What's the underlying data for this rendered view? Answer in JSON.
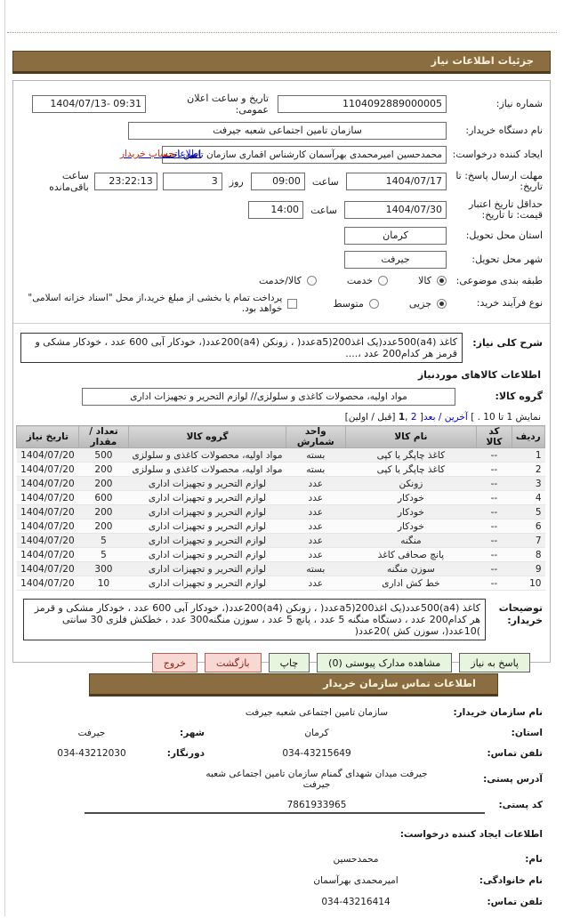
{
  "header": {
    "title": "جزئیات اطلاعات نیاز"
  },
  "form": {
    "need_number": {
      "label": "شماره نیاز:",
      "value": "1104092889000005"
    },
    "announce": {
      "label": "تاریخ و ساعت اعلان عمومی:",
      "value": "1404/07/13- 09:31"
    },
    "buyer_org": {
      "label": "نام دستگاه خریدار:",
      "value": "سازمان تامین اجتماعی شعبه جیرفت"
    },
    "creator": {
      "label": "ایجاد کننده درخواست:",
      "value": "محمدحسین امیرمحمدی بهرآسمان کارشناس اقماری سازمان تامین اجتماعی",
      "link_part1": "اطلاعات",
      "link_part2": "حساب خریدار"
    },
    "deadline": {
      "label": "مهلت ارسال پاسخ: تا تاریخ:",
      "date": "1404/07/17",
      "hour_label": "ساعت",
      "hour": "09:00",
      "day_label": "روز",
      "days": "3",
      "remaining": "23:22:13",
      "remaining_label": "ساعت باقی‌مانده"
    },
    "price_validity": {
      "label": "حداقل تاریخ اعتبار قیمت: تا تاریخ:",
      "date": "1404/07/30",
      "hour_label": "ساعت",
      "hour": "14:00"
    },
    "province": {
      "label": "استان محل تحویل:",
      "value": "کرمان"
    },
    "city": {
      "label": "شهر محل تحویل:",
      "value": "جیرفت"
    },
    "category": {
      "label": "طبقه بندی موضوعی:",
      "options": [
        {
          "label": "کالا",
          "selected": true
        },
        {
          "label": "خدمت",
          "selected": false
        },
        {
          "label": "کالا/خدمت",
          "selected": false
        }
      ]
    },
    "process_type": {
      "label": "نوع فرآیند خرید:",
      "options": [
        {
          "label": "جزیی",
          "selected": true
        },
        {
          "label": "متوسط",
          "selected": false
        }
      ],
      "checkbox_label": "پرداخت تمام یا بخشی از مبلغ خرید،از محل \"اسناد خزانه اسلامی\" خواهد بود.",
      "checkbox_checked": false
    }
  },
  "need_desc": {
    "label": "شرح کلی نیاز:",
    "value": "کاغذ (a4)500عدد(یک اغذ200(a5عدد( ، زونکن (a4)200عدد(، خودکار آبی 600 عدد ، خودکار مشکی و قرمز هر کدام200 عدد ،...."
  },
  "goods_info": {
    "title": "اطلاعات کالاهای موردنیاز",
    "group": {
      "label": "گروه کالا:",
      "value": "مواد اولیه، محصولات کاغذی و سلولزی// لوازم التحریر و تجهیزات اداری"
    },
    "pagination": {
      "prefix": "نمایش 1 تا 10 . ]",
      "links": "آخرین / بعد",
      "open_bracket": "[",
      "page2": "2",
      "comma": " ,",
      "page1": "1",
      "suffix": "[قبل / اولین]"
    }
  },
  "table": {
    "columns": [
      "ردیف",
      "کد کالا",
      "نام کالا",
      "واحد شمارش",
      "گروه کالا",
      "تعداد / مقدار",
      "تاریخ نیاز"
    ],
    "col_keys": [
      "row-index",
      "item-code",
      "item-name",
      "unit",
      "item-group",
      "quantity",
      "need-date"
    ],
    "rows": [
      [
        "1",
        "--",
        "کاغذ چاپگر یا کپی",
        "بسته",
        "مواد اولیه، محصولات کاغذی و سلولزی",
        "500",
        "1404/07/20"
      ],
      [
        "2",
        "--",
        "کاغذ چاپگر یا کپی",
        "بسته",
        "مواد اولیه، محصولات کاغذی و سلولزی",
        "200",
        "1404/07/20"
      ],
      [
        "3",
        "--",
        "زونکن",
        "عدد",
        "لوازم التحریر و تجهیزات اداری",
        "200",
        "1404/07/20"
      ],
      [
        "4",
        "--",
        "خودکار",
        "عدد",
        "لوازم التحریر و تجهیزات اداری",
        "600",
        "1404/07/20"
      ],
      [
        "5",
        "--",
        "خودکار",
        "عدد",
        "لوازم التحریر و تجهیزات اداری",
        "200",
        "1404/07/20"
      ],
      [
        "6",
        "--",
        "خودکار",
        "عدد",
        "لوازم التحریر و تجهیزات اداری",
        "200",
        "1404/07/20"
      ],
      [
        "7",
        "--",
        "منگنه",
        "عدد",
        "لوازم التحریر و تجهیزات اداری",
        "5",
        "1404/07/20"
      ],
      [
        "8",
        "--",
        "پانچ صحافی کاغذ",
        "عدد",
        "لوازم التحریر و تجهیزات اداری",
        "5",
        "1404/07/20"
      ],
      [
        "9",
        "--",
        "سوزن منگنه",
        "بسته",
        "لوازم التحریر و تجهیزات اداری",
        "300",
        "1404/07/20"
      ],
      [
        "10",
        "--",
        "خط کش اداری",
        "عدد",
        "لوازم التحریر و تجهیزات اداری",
        "10",
        "1404/07/20"
      ]
    ]
  },
  "buyer_notes": {
    "label_line1": "توضیحات",
    "label_line2": "خریدار:",
    "value": "کاغذ (a4)500عدد(یک اغذ200(a5عدد( ، زونکن (a4)200عدد(، خودکار آبی 600 عدد ، خودکار مشکی و قرمز هر کدام200 عدد ، دستگاه منگنه 5 عدد ، پانچ 5 عدد ، سوزن منگنه300 عدد ، خطکش فلزی 30 سانتی )10عدد(، سوزن کش )20عدد("
  },
  "buttons": [
    {
      "label": "پاسخ به نیاز",
      "style": "green"
    },
    {
      "label": "مشاهده مدارک پیوستی (0)",
      "style": "green"
    },
    {
      "label": "چاپ",
      "style": "green"
    },
    {
      "label": "بازگشت",
      "style": "red"
    },
    {
      "label": "خروج",
      "style": "red"
    }
  ],
  "contact": {
    "title": "اطلاعات تماس سازمان خریدار",
    "org": {
      "label": "نام سازمان خریدار:",
      "value": "سازمان تامین اجتماعی شعبه جیرفت"
    },
    "province": {
      "label": "استان:",
      "value": "کرمان"
    },
    "city": {
      "label": "شهر:",
      "value": "جیرفت"
    },
    "phone": {
      "label": "تلفن تماس:",
      "value": "034-43215649"
    },
    "fax": {
      "label": "دورنگار:",
      "value": "034-43212030"
    },
    "address": {
      "label": "آدرس پستی:",
      "value": "جیرفت میدان شهدای گمنام سازمان تامین اجتماعی شعبه جیرفت"
    },
    "postal_code": {
      "label": "کد پستی:",
      "value": "7861933965"
    }
  },
  "creator_info": {
    "title": "اطلاعات ایجاد کننده درخواست:",
    "first_name": {
      "label": "نام:",
      "value": "محمدحسین"
    },
    "last_name": {
      "label": "نام خانوادگی:",
      "value": "امیرمحمدی بهرآسمان"
    },
    "phone": {
      "label": "تلفن تماس:",
      "value": "034-43216414"
    }
  },
  "colors": {
    "header_brown": "#8a6d41",
    "button_green_bg": "#e7f4de",
    "button_red_bg": "#f8d8d3",
    "link_blue": "#0000cc",
    "table_header_gray": "#c6c6c6"
  }
}
